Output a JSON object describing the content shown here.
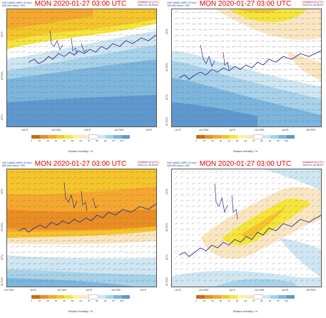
{
  "colors": {
    "rh_bands": [
      "#c86a12",
      "#ea8d22",
      "#f6a82e",
      "#f5c52a",
      "#f6e53a",
      "#fbf2a2",
      "#fbe6c2",
      "#ffffff",
      "#cfe6f3",
      "#a6d2ea",
      "#7cb5dd",
      "#5e98cf"
    ],
    "coast": "#2b2e8a",
    "title": "#e00000",
    "header": "#1a3a8a"
  },
  "panels": [
    {
      "model": "HKO AAMC-WRF (10 km)",
      "field": "850 hPa Wind + RH",
      "title": "MON 2020-01-27 03:00 UTC",
      "init_label": "Initialised at (UTC)",
      "init_time": "2020-01-26 06:00",
      "lat_labels": [
        "23°N",
        "22°30'N",
        "22°N"
      ],
      "lon_labels": [
        "113°E",
        "113°30'E",
        "114°E",
        "114°30'E",
        "115°E"
      ],
      "colorbar_title": "Relative Humidity / %"
    },
    {
      "model": "HKO AAMC-WRF (10 km)",
      "field": "700 hPa Wind + RH",
      "title": "MON 2020-01-27 03:00 UTC",
      "init_label": "Initialised at (UTC)",
      "init_time": "2020-01-26 06:00",
      "lat_labels": [
        "23°N",
        "22°30'N",
        "22°N",
        "21°30'N"
      ],
      "lon_labels": [
        "113°E",
        "113°30'E",
        "114°E",
        "114°30'E",
        "115°E",
        "115°30'E"
      ],
      "colorbar_title": "Relative Humidity / %"
    },
    {
      "model": "HKO AAMC-WRF (10 km)",
      "field": "850 hPa Wind + RH",
      "title": "MON 2020-01-27 03:00 UTC",
      "init_label": "Initialised at (UTC)",
      "init_time": "2020-01-26 06:00",
      "lat_labels": [
        "23°N",
        "22°30'N",
        "22°N",
        "21°30'N"
      ],
      "lon_labels": [
        "112°30'E",
        "113°E",
        "113°30'E",
        "114°E",
        "114°30'E",
        "115°E"
      ],
      "colorbar_title": "Relative Humidity / %"
    },
    {
      "model": "HKO AAMC-WRF (10 km)",
      "field": "925 hPa Wind + RH",
      "title": "MON 2020-01-27 03:00 UTC",
      "init_label": "Initialised at (UTC)",
      "init_time": "2020-01-26 06:00",
      "lat_labels": [
        "23°N",
        "22°30'N",
        "22°N",
        "21°30'N"
      ],
      "lon_labels": [
        "113°E",
        "113°30'E",
        "114°E",
        "114°30'E",
        "115°E",
        "115°30'E"
      ],
      "colorbar_title": "Relative Humidity / %"
    }
  ],
  "colorbar_ticks": [
    "0",
    "10",
    "20",
    "30",
    "40",
    "50",
    "60",
    "70",
    "80",
    "90",
    "95",
    "100"
  ]
}
